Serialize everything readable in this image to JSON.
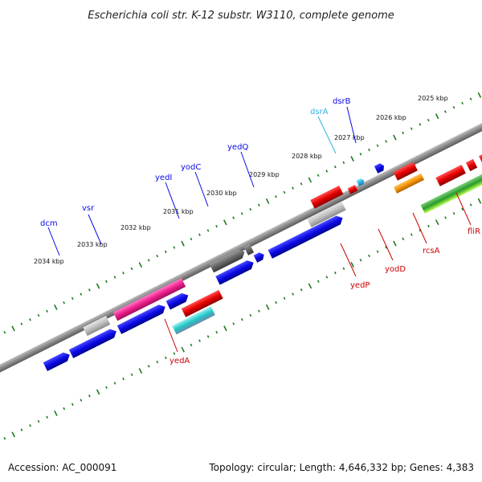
{
  "title": "Escherichia coli str. K-12 substr. W3110, complete genome",
  "footer": {
    "accession": "Accession: AC_000091",
    "topology": "Topology: circular; Length: 4,646,332 bp; Genes: 4,383"
  },
  "colors": {
    "forward_gene": "#0a0ae6",
    "reverse_gene": "#e60000",
    "highlight_gene": "#30b4e8",
    "tick": "#1f7a1f",
    "backbone": "#808080"
  },
  "scale_labels": [
    "2025 kbp",
    "2026 kbp",
    "2027 kbp",
    "2028 kbp",
    "2029 kbp",
    "2030 kbp",
    "2031 kbp",
    "2032 kbp",
    "2033 kbp",
    "2034 kbp"
  ],
  "genes_top": [
    {
      "name": "dsrB",
      "color": "#0a0ae6"
    },
    {
      "name": "dsrA",
      "color": "#30b4e8"
    },
    {
      "name": "yedQ",
      "color": "#0a0ae6"
    },
    {
      "name": "yodC",
      "color": "#0a0ae6"
    },
    {
      "name": "yedI",
      "color": "#0a0ae6"
    },
    {
      "name": "vsr",
      "color": "#0a0ae6"
    },
    {
      "name": "dcm",
      "color": "#0a0ae6"
    }
  ],
  "genes_bottom": [
    {
      "name": "fliR",
      "color": "#cc0000"
    },
    {
      "name": "rcsA",
      "color": "#cc0000"
    },
    {
      "name": "yodD",
      "color": "#cc0000"
    },
    {
      "name": "yedP",
      "color": "#cc0000"
    },
    {
      "name": "yedA",
      "color": "#cc0000"
    }
  ]
}
